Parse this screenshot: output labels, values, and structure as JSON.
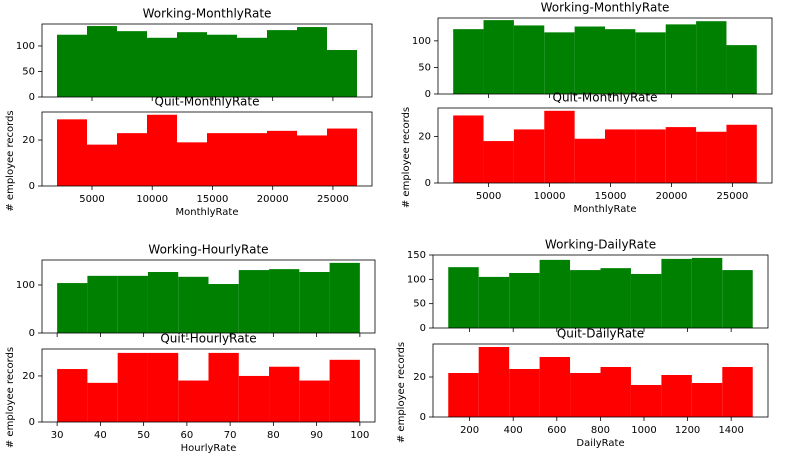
{
  "chart_data": [
    {
      "type": "histogram",
      "title": "Working-MonthlyRate",
      "color": "#008000",
      "bins": [
        2094,
        4584.5,
        7075,
        9565.5,
        12056,
        14546.5,
        17037,
        19527.5,
        22018,
        24508.5,
        26999
      ],
      "values": [
        122,
        139,
        129,
        116,
        127,
        122,
        116,
        131,
        137,
        92
      ],
      "xlim": [
        849,
        28244
      ],
      "ylim": [
        0,
        143
      ],
      "yticks": [
        0,
        50,
        100
      ]
    },
    {
      "type": "histogram",
      "title": "Quit-MonthlyRate",
      "color": "#ff0000",
      "bins": [
        2094,
        4584.5,
        7075,
        9565.5,
        12056,
        14546.5,
        17037,
        19527.5,
        22018,
        24508.5,
        26999
      ],
      "values": [
        29,
        18,
        23,
        31,
        19,
        23,
        23,
        24,
        22,
        25
      ],
      "xlim": [
        849,
        28244
      ],
      "ylim": [
        0,
        32.2
      ],
      "yticks": [
        0,
        20
      ],
      "xticks": [
        5000,
        10000,
        15000,
        20000,
        25000
      ],
      "xlabel": "MonthlyRate",
      "ylabel": "# employee records"
    },
    {
      "type": "histogram",
      "title": "Working-MonthlyRate",
      "color": "#008000",
      "bins": [
        2094,
        4584.5,
        7075,
        9565.5,
        12056,
        14546.5,
        17037,
        19527.5,
        22018,
        24508.5,
        26999
      ],
      "values": [
        122,
        139,
        129,
        116,
        127,
        122,
        116,
        131,
        137,
        92
      ],
      "xlim": [
        849,
        28244
      ],
      "ylim": [
        0,
        143
      ],
      "yticks": [
        0,
        50,
        100
      ]
    },
    {
      "type": "histogram",
      "title": "Quit-MonthlyRate",
      "color": "#ff0000",
      "bins": [
        2094,
        4584.5,
        7075,
        9565.5,
        12056,
        14546.5,
        17037,
        19527.5,
        22018,
        24508.5,
        26999
      ],
      "values": [
        29,
        18,
        23,
        31,
        19,
        23,
        23,
        24,
        22,
        25
      ],
      "xlim": [
        849,
        28244
      ],
      "ylim": [
        0,
        32.2
      ],
      "yticks": [
        0,
        20
      ],
      "xticks": [
        5000,
        10000,
        15000,
        20000,
        25000
      ],
      "xlabel": "MonthlyRate",
      "ylabel": "# employee records"
    },
    {
      "type": "histogram",
      "title": "Working-HourlyRate",
      "color": "#008000",
      "bins": [
        30,
        37,
        44,
        51,
        58,
        65,
        72,
        79,
        86,
        93,
        100
      ],
      "values": [
        104,
        119,
        119,
        127,
        117,
        102,
        131,
        133,
        127,
        146
      ],
      "xlim": [
        26.5,
        103.5
      ],
      "ylim": [
        0,
        152
      ],
      "yticks": [
        0,
        100
      ]
    },
    {
      "type": "histogram",
      "title": "Quit-HourlyRate",
      "color": "#ff0000",
      "bins": [
        30,
        37,
        44,
        51,
        58,
        65,
        72,
        79,
        86,
        93,
        100
      ],
      "values": [
        23,
        17,
        30,
        30,
        18,
        30,
        20,
        24,
        18,
        27
      ],
      "xlim": [
        26.5,
        103.5
      ],
      "ylim": [
        0,
        31.7
      ],
      "yticks": [
        0,
        20
      ],
      "xticks": [
        30,
        40,
        50,
        60,
        70,
        80,
        90,
        100
      ],
      "xlabel": "HourlyRate",
      "ylabel": "# employee records"
    },
    {
      "type": "histogram",
      "title": "Working-DailyRate",
      "color": "#008000",
      "bins": [
        102,
        241.7,
        381.4,
        521.1,
        660.8,
        800.5,
        940.2,
        1079.9,
        1219.6,
        1359.3,
        1499
      ],
      "values": [
        125,
        105,
        113,
        140,
        119,
        123,
        111,
        142,
        144,
        119
      ],
      "xlim": [
        32,
        1569
      ],
      "ylim": [
        0,
        150
      ],
      "yticks": [
        0,
        50,
        100,
        150
      ]
    },
    {
      "type": "histogram",
      "title": "Quit-DailyRate",
      "color": "#ff0000",
      "bins": [
        102,
        241.7,
        381.4,
        521.1,
        660.8,
        800.5,
        940.2,
        1079.9,
        1219.6,
        1359.3,
        1499
      ],
      "values": [
        22,
        35,
        24,
        30,
        22,
        25,
        16,
        21,
        17,
        25
      ],
      "xlim": [
        32,
        1569
      ],
      "ylim": [
        0,
        36.5
      ],
      "yticks": [
        0,
        20
      ],
      "xticks": [
        200,
        400,
        600,
        800,
        1000,
        1200,
        1400
      ],
      "xlabel": "DailyRate",
      "ylabel": "# employee records"
    }
  ]
}
